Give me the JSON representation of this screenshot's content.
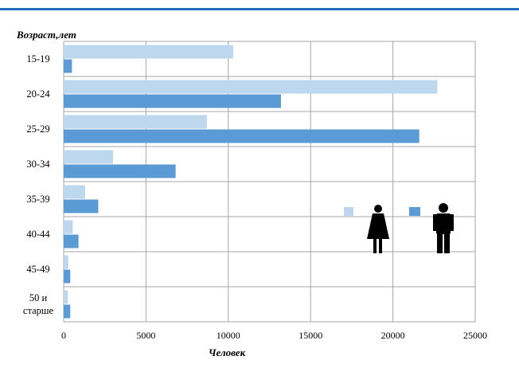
{
  "chart_data": {
    "type": "bar",
    "orientation": "horizontal",
    "ylabel": "Возраст,лет",
    "xlabel": "Человек",
    "categories": [
      "15-19",
      "20-24",
      "25-29",
      "30-34",
      "35-39",
      "40-44",
      "45-49",
      "50 и старше"
    ],
    "category_lines": [
      [
        "15-19"
      ],
      [
        "20-24"
      ],
      [
        "25-29"
      ],
      [
        "30-34"
      ],
      [
        "35-39"
      ],
      [
        "40-44"
      ],
      [
        "45-49"
      ],
      [
        "50 и",
        "старше"
      ]
    ],
    "xlim": [
      0,
      25000
    ],
    "xticks": [
      0,
      5000,
      10000,
      15000,
      20000,
      25000
    ],
    "grid": true,
    "series": [
      {
        "values": [
          10300,
          22700,
          8700,
          3000,
          1300,
          550,
          280,
          250
        ],
        "color": "#bdd7ee",
        "legend_icon": "woman-icon"
      },
      {
        "values": [
          500,
          13200,
          21600,
          6800,
          2100,
          900,
          400,
          400
        ],
        "color": "#5b9bd5",
        "legend_icon": "man-icon"
      }
    ],
    "legend_position": "right-middle"
  },
  "colors": {
    "accent_line": "#1f6fc1",
    "grid": "#a6a6a6",
    "text": "#000000"
  }
}
